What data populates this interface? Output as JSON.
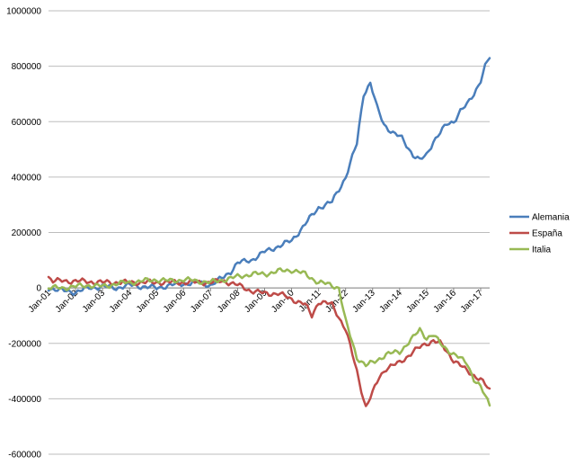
{
  "chart_data": {
    "type": "line",
    "title": "",
    "xlabel": "",
    "ylabel": "",
    "ylim": [
      -600000,
      1000000
    ],
    "ytick_step": 200000,
    "yticks": [
      "1000000",
      "800000",
      "600000",
      "400000",
      "200000",
      "0",
      "-200000",
      "-400000",
      "-600000"
    ],
    "grid": true,
    "legend_position": "right",
    "x_ticks": [
      "Jan-01",
      "Jan-02",
      "Jan-03",
      "Jan-04",
      "Jan-05",
      "Jan-06",
      "Jan-07",
      "Jan-08",
      "Jan-09",
      "Jan-10",
      "Jan-11",
      "Jan-12",
      "Jan-13",
      "Jan-14",
      "Jan-15",
      "Jan-16",
      "Jan-17"
    ],
    "x_range": [
      "Jan-01",
      "May-17"
    ],
    "series": [
      {
        "name": "Alemania",
        "color": "#4a7ebb",
        "points": [
          [
            "Jan-01",
            0
          ],
          [
            "Jul-01",
            -10000
          ],
          [
            "Jan-02",
            -15000
          ],
          [
            "Jul-02",
            0
          ],
          [
            "Jan-03",
            5000
          ],
          [
            "Jul-03",
            0
          ],
          [
            "Jan-04",
            10000
          ],
          [
            "Jul-04",
            5000
          ],
          [
            "Jan-05",
            0
          ],
          [
            "Jul-05",
            10000
          ],
          [
            "Jan-06",
            15000
          ],
          [
            "Jul-06",
            20000
          ],
          [
            "Jan-07",
            10000
          ],
          [
            "Jul-07",
            40000
          ],
          [
            "Oct-07",
            60000
          ],
          [
            "Jan-08",
            90000
          ],
          [
            "Jul-08",
            100000
          ],
          [
            "Jan-09",
            130000
          ],
          [
            "Jul-09",
            150000
          ],
          [
            "Jan-10",
            170000
          ],
          [
            "Jul-10",
            230000
          ],
          [
            "Jan-11",
            290000
          ],
          [
            "Jul-11",
            310000
          ],
          [
            "Jan-12",
            400000
          ],
          [
            "Jun-12",
            520000
          ],
          [
            "Sep-12",
            700000
          ],
          [
            "Dec-12",
            740000
          ],
          [
            "Mar-13",
            650000
          ],
          [
            "Jun-13",
            590000
          ],
          [
            "Oct-13",
            560000
          ],
          [
            "Feb-14",
            540000
          ],
          [
            "Jul-14",
            480000
          ],
          [
            "Oct-14",
            460000
          ],
          [
            "Jan-15",
            480000
          ],
          [
            "Apr-15",
            530000
          ],
          [
            "Jul-15",
            560000
          ],
          [
            "Oct-15",
            590000
          ],
          [
            "Jan-16",
            600000
          ],
          [
            "Apr-16",
            640000
          ],
          [
            "Jul-16",
            660000
          ],
          [
            "Oct-16",
            700000
          ],
          [
            "Jan-17",
            750000
          ],
          [
            "Mar-17",
            800000
          ],
          [
            "May-17",
            830000
          ]
        ]
      },
      {
        "name": "España",
        "color": "#be4b48",
        "points": [
          [
            "Jan-01",
            40000
          ],
          [
            "Mar-01",
            25000
          ],
          [
            "Jan-02",
            25000
          ],
          [
            "Jan-03",
            20000
          ],
          [
            "Jan-04",
            20000
          ],
          [
            "Jan-05",
            20000
          ],
          [
            "Jan-06",
            20000
          ],
          [
            "Jan-07",
            20000
          ],
          [
            "Jul-07",
            25000
          ],
          [
            "Jan-08",
            10000
          ],
          [
            "Jul-08",
            -10000
          ],
          [
            "Jan-09",
            -20000
          ],
          [
            "Jul-09",
            -20000
          ],
          [
            "Jan-10",
            -40000
          ],
          [
            "Jul-10",
            -60000
          ],
          [
            "Oct-10",
            -100000
          ],
          [
            "Jan-11",
            -50000
          ],
          [
            "Jul-11",
            -60000
          ],
          [
            "Jan-12",
            -150000
          ],
          [
            "Jun-12",
            -300000
          ],
          [
            "Sep-12",
            -400000
          ],
          [
            "Oct-12",
            -430000
          ],
          [
            "Jan-13",
            -380000
          ],
          [
            "Apr-13",
            -320000
          ],
          [
            "Jul-13",
            -290000
          ],
          [
            "Jan-14",
            -270000
          ],
          [
            "Jul-14",
            -230000
          ],
          [
            "Jan-15",
            -200000
          ],
          [
            "Apr-15",
            -190000
          ],
          [
            "Jul-15",
            -200000
          ],
          [
            "Oct-15",
            -230000
          ],
          [
            "Jan-16",
            -260000
          ],
          [
            "Jul-16",
            -300000
          ],
          [
            "Jan-17",
            -330000
          ],
          [
            "May-17",
            -370000
          ]
        ]
      },
      {
        "name": "Italia",
        "color": "#98b954",
        "points": [
          [
            "Jan-01",
            0
          ],
          [
            "Jul-01",
            0
          ],
          [
            "Jan-02",
            5000
          ],
          [
            "Jul-02",
            10000
          ],
          [
            "Jan-03",
            5000
          ],
          [
            "Jul-03",
            15000
          ],
          [
            "Jan-04",
            20000
          ],
          [
            "Jul-04",
            25000
          ],
          [
            "Jan-05",
            30000
          ],
          [
            "Jul-05",
            25000
          ],
          [
            "Jan-06",
            30000
          ],
          [
            "Jul-06",
            25000
          ],
          [
            "Jan-07",
            20000
          ],
          [
            "Jul-07",
            30000
          ],
          [
            "Jan-08",
            40000
          ],
          [
            "Jul-08",
            50000
          ],
          [
            "Jan-09",
            50000
          ],
          [
            "Jul-09",
            60000
          ],
          [
            "Jan-10",
            65000
          ],
          [
            "Jul-10",
            50000
          ],
          [
            "Jan-11",
            20000
          ],
          [
            "Jul-11",
            10000
          ],
          [
            "Oct-11",
            0
          ],
          [
            "Jan-12",
            -120000
          ],
          [
            "Jun-12",
            -250000
          ],
          [
            "Oct-12",
            -280000
          ],
          [
            "Jan-13",
            -270000
          ],
          [
            "Jul-13",
            -240000
          ],
          [
            "Jan-14",
            -230000
          ],
          [
            "Jul-14",
            -180000
          ],
          [
            "Oct-14",
            -150000
          ],
          [
            "Jan-15",
            -180000
          ],
          [
            "Apr-15",
            -170000
          ],
          [
            "Jul-15",
            -200000
          ],
          [
            "Jan-16",
            -240000
          ],
          [
            "Jul-16",
            -270000
          ],
          [
            "Oct-16",
            -330000
          ],
          [
            "Jan-17",
            -360000
          ],
          [
            "May-17",
            -420000
          ]
        ]
      }
    ]
  }
}
